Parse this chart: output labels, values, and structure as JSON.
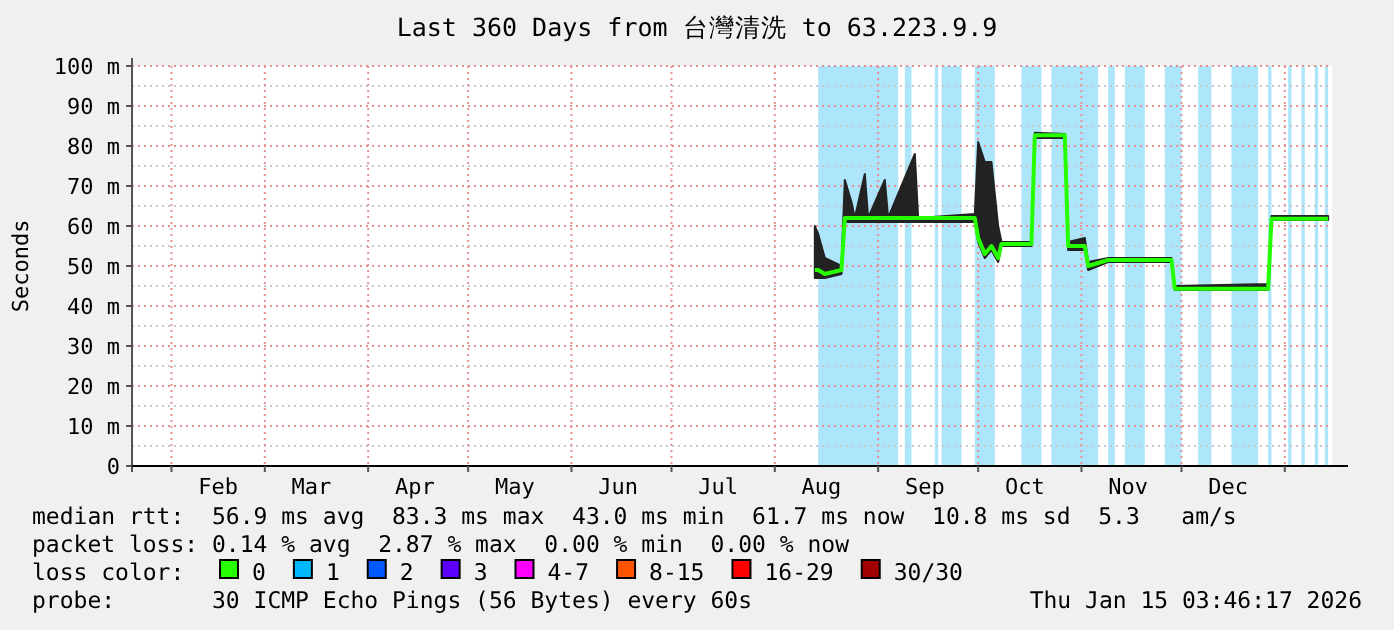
{
  "chart_data": {
    "type": "line",
    "title": "Last 360 Days from 台灣清洗 to 63.223.9.9",
    "ylabel": "Seconds",
    "legend_title": "loss color:",
    "legend": "bottom",
    "grid": true,
    "xlim": [
      "2025-01-20T03:46",
      "2026-01-15T03:46"
    ],
    "xticks": [
      {
        "value": "2025-02-01",
        "label": null
      },
      {
        "value": "2025-02-15",
        "label": "Feb"
      },
      {
        "value": "2025-03-01",
        "label": null
      },
      {
        "value": "2025-03-15",
        "label": "Mar"
      },
      {
        "value": "2025-04-01",
        "label": null
      },
      {
        "value": "2025-04-15",
        "label": "Apr"
      },
      {
        "value": "2025-05-01",
        "label": null
      },
      {
        "value": "2025-05-15",
        "label": "May"
      },
      {
        "value": "2025-06-01",
        "label": null
      },
      {
        "value": "2025-06-15",
        "label": "Jun"
      },
      {
        "value": "2025-07-01",
        "label": null
      },
      {
        "value": "2025-07-15",
        "label": "Jul"
      },
      {
        "value": "2025-08-01",
        "label": null
      },
      {
        "value": "2025-08-15",
        "label": "Aug"
      },
      {
        "value": "2025-09-01",
        "label": null
      },
      {
        "value": "2025-09-15",
        "label": "Sep"
      },
      {
        "value": "2025-10-01",
        "label": null
      },
      {
        "value": "2025-10-15",
        "label": "Oct"
      },
      {
        "value": "2025-11-01",
        "label": null
      },
      {
        "value": "2025-11-15",
        "label": "Nov"
      },
      {
        "value": "2025-12-01",
        "label": null
      },
      {
        "value": "2025-12-15",
        "label": "Dec"
      },
      {
        "value": "2026-01-01",
        "label": null
      }
    ],
    "ylim": [
      0,
      100
    ],
    "yticks": [
      0,
      {
        "value": 10,
        "label": "10 m"
      },
      {
        "value": 20,
        "label": "20 m"
      },
      {
        "value": 30,
        "label": "30 m"
      },
      {
        "value": 40,
        "label": "40 m"
      },
      {
        "value": 50,
        "label": "50 m"
      },
      {
        "value": 60,
        "label": "60 m"
      },
      {
        "value": 70,
        "label": "70 m"
      },
      {
        "value": 80,
        "label": "80 m"
      },
      {
        "value": 90,
        "label": "90 m"
      },
      {
        "value": 100,
        "label": "100 m"
      }
    ],
    "bands": [
      {
        "axis": "x",
        "from": "2025-08-14",
        "to": "2025-09-07",
        "color": "#ade5fb"
      },
      {
        "axis": "x",
        "from": "2025-09-09",
        "to": "2025-09-11",
        "color": "#ade5fb"
      },
      {
        "axis": "x",
        "from": "2025-09-18",
        "to": "2025-09-19",
        "color": "#ade5fb"
      },
      {
        "axis": "x",
        "from": "2025-09-20",
        "to": "2025-09-26",
        "color": "#ade5fb"
      },
      {
        "axis": "x",
        "from": "2025-09-30",
        "to": "2025-10-06",
        "color": "#ade5fb"
      },
      {
        "axis": "x",
        "from": "2025-10-14",
        "to": "2025-10-20",
        "color": "#ade5fb"
      },
      {
        "axis": "x",
        "from": "2025-10-23",
        "to": "2025-11-06",
        "color": "#ade5fb"
      },
      {
        "axis": "x",
        "from": "2025-11-09",
        "to": "2025-11-11",
        "color": "#ade5fb"
      },
      {
        "axis": "x",
        "from": "2025-11-14",
        "to": "2025-11-20",
        "color": "#ade5fb"
      },
      {
        "axis": "x",
        "from": "2025-11-26",
        "to": "2025-12-01",
        "color": "#ade5fb"
      },
      {
        "axis": "x",
        "from": "2025-12-06",
        "to": "2025-12-10",
        "color": "#ade5fb"
      },
      {
        "axis": "x",
        "from": "2025-12-16",
        "to": "2025-12-24",
        "color": "#ade5fb"
      },
      {
        "axis": "x",
        "from": "2025-12-27",
        "to": "2025-12-28",
        "color": "#ade5fb"
      },
      {
        "axis": "x",
        "from": "2026-01-02",
        "to": "2026-01-03",
        "color": "#ade5fb"
      },
      {
        "axis": "x",
        "from": "2026-01-06",
        "to": "2026-01-07",
        "color": "#ade5fb"
      },
      {
        "axis": "x",
        "from": "2026-01-10",
        "to": "2026-01-11",
        "color": "#ade5fb"
      },
      {
        "axis": "x",
        "from": "2026-01-13",
        "to": "2026-01-14",
        "color": "#ade5fb"
      }
    ],
    "series": [
      {
        "name": "0",
        "color": "#26ff00",
        "x": [
          "2025-08-13",
          "2025-08-14",
          "2025-08-16",
          "2025-08-21",
          "2025-08-22",
          "2025-08-24",
          "2025-08-25",
          "2025-08-28",
          "2025-08-29",
          "2025-09-03",
          "2025-09-04",
          "2025-09-12",
          "2025-09-13",
          "2025-09-30",
          "2025-10-01",
          "2025-10-03",
          "2025-10-05",
          "2025-10-07",
          "2025-10-08",
          "2025-10-17",
          "2025-10-18",
          "2025-10-27",
          "2025-10-28",
          "2025-11-02",
          "2025-11-03",
          "2025-11-09",
          "2025-11-28",
          "2025-11-29",
          "2025-12-27",
          "2025-12-28",
          "2026-01-14"
        ],
        "values": [
          49,
          49,
          48,
          49,
          62,
          62,
          62,
          62,
          62,
          62,
          62,
          62,
          62,
          62,
          57,
          53,
          55,
          52,
          55.5,
          55.5,
          82.7,
          82.7,
          55,
          55,
          50,
          51.5,
          51.5,
          44.3,
          44.3,
          61.8,
          61.8
        ],
        "lower": [
          47,
          47,
          47,
          48,
          61,
          61,
          61,
          61,
          61,
          61,
          61,
          61,
          61,
          61,
          56,
          52,
          54,
          51,
          55,
          55,
          82,
          82,
          54,
          54,
          49,
          51,
          51,
          44,
          44,
          61.5,
          61.5
        ],
        "upper": [
          60,
          58,
          52,
          50,
          71.5,
          66,
          62,
          73,
          62,
          71.5,
          62,
          78,
          62,
          63,
          81,
          76,
          76,
          60,
          56,
          56,
          83.3,
          83,
          56,
          57,
          51,
          52,
          52,
          45,
          45.5,
          62.5,
          62.5
        ]
      },
      {
        "name": "1",
        "color": "#00b8ff"
      },
      {
        "name": "2",
        "color": "#0059ff"
      },
      {
        "name": "3",
        "color": "#5e00ff"
      },
      {
        "name": "4-7",
        "color": "#ff00ff"
      },
      {
        "name": "8-15",
        "color": "#ff5500"
      },
      {
        "name": "16-29",
        "color": "#ff0000"
      },
      {
        "name": "30/30",
        "color": "#a00000"
      }
    ],
    "annotations": [
      "median rtt:  56.9 ms avg  83.3 ms max  43.0 ms min  61.7 ms now  10.8 ms sd  5.3   am/s",
      "packet loss: 0.14 % avg  2.87 % max  0.00 % min  0.00 % now",
      "probe:       30 ICMP Echo Pings (56 Bytes) every 60s",
      "Thu Jan 15 03:46:17 2026"
    ]
  }
}
